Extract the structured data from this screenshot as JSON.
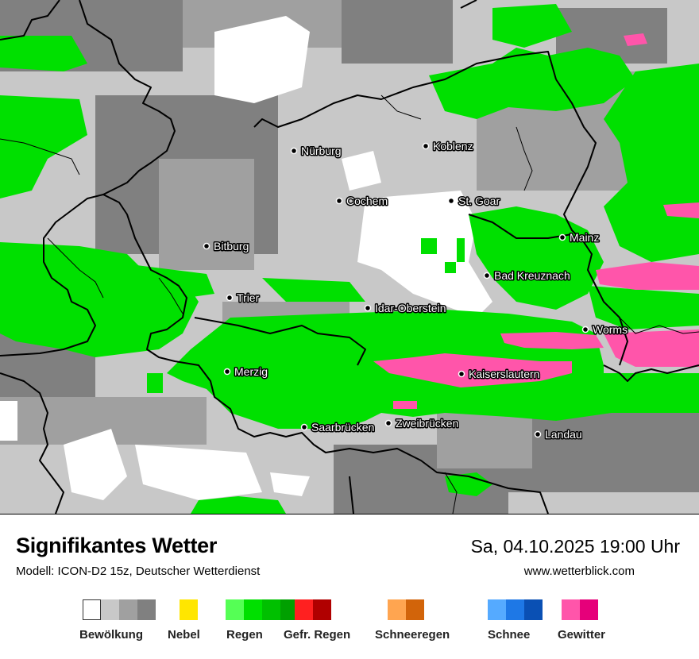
{
  "map": {
    "cities": [
      {
        "name": "Nürburg"
      },
      {
        "name": "Koblenz"
      },
      {
        "name": "Cochem"
      },
      {
        "name": "St. Goar"
      },
      {
        "name": "Bitburg"
      },
      {
        "name": "Mainz"
      },
      {
        "name": "Bad Kreuznach"
      },
      {
        "name": "Trier"
      },
      {
        "name": "Idar-Oberstein"
      },
      {
        "name": "Worms"
      },
      {
        "name": "Merzig"
      },
      {
        "name": "Kaiserslautern"
      },
      {
        "name": "Saarbrücken"
      },
      {
        "name": "Zweibrücken"
      },
      {
        "name": "Landau"
      }
    ],
    "colors": {
      "cloud_1": "#ffffff",
      "cloud_2": "#c8c8c8",
      "cloud_3": "#a0a0a0",
      "cloud_4": "#808080",
      "rain": "#00e000",
      "thunderstorm": "#ff55aa",
      "border": "#000000"
    }
  },
  "footer": {
    "title": "Signifikantes Wetter",
    "model": "Modell: ICON-D2 15z, Deutscher Wetterdienst",
    "datetime": "Sa, 04.10.2025 19:00 Uhr",
    "site": "www.wetterblick.com"
  },
  "legend": [
    {
      "label": "Bewölkung",
      "colors": [
        "#ffffff",
        "#c8c8c8",
        "#a0a0a0",
        "#808080"
      ]
    },
    {
      "label": "Nebel",
      "colors": [
        "#ffe600"
      ]
    },
    {
      "label": "Regen",
      "colors": [
        "#55ff55",
        "#00e000",
        "#00c000",
        "#00a000"
      ]
    },
    {
      "label": "Gefr. Regen",
      "colors": [
        "#ff2020",
        "#b00000"
      ]
    },
    {
      "label": "Schneeregen",
      "colors": [
        "#ffa550",
        "#d2640a"
      ]
    },
    {
      "label": "Schnee",
      "colors": [
        "#55aaff",
        "#1e78e6",
        "#0a50b4"
      ]
    },
    {
      "label": "Gewitter",
      "colors": [
        "#ff55aa",
        "#e6007a"
      ]
    }
  ]
}
